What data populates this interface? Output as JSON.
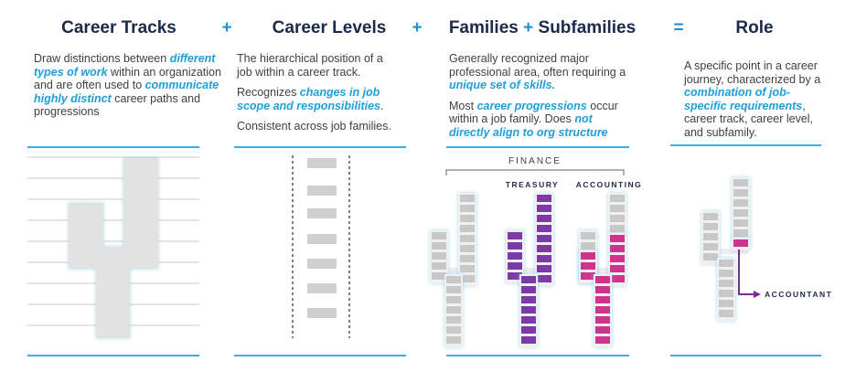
{
  "operators": {
    "plus1": "+",
    "plus2": "+",
    "equals": "="
  },
  "columns": {
    "career_tracks": {
      "title": "Career Tracks",
      "desc_1": "Draw distinctions between ",
      "desc_hl1": "different types of work",
      "desc_2": " within an organization and are often used to ",
      "desc_hl2": "communicate highly distinct",
      "desc_3": " career paths and progressions"
    },
    "career_levels": {
      "title": "Career Levels",
      "p1": "The hierarchical position of a job within a career track.",
      "p2_a": "Recognizes ",
      "p2_hl": "changes in job scope and responsibilities",
      "p2_b": ".",
      "p3": "Consistent across job families."
    },
    "families": {
      "title_a": "Families",
      "title_plus": "+",
      "title_b": "Subfamilies",
      "p1_a": "Generally recognized major professional area, often requiring a ",
      "p1_hl": "unique set of skills.",
      "p2_a": "Most ",
      "p2_hl1": "career progressions",
      "p2_b": " occur within a job family. Does ",
      "p2_hl2": "not directly align to org structure",
      "finance_label": "FINANCE",
      "treasury_label": "TREASURY",
      "accounting_label": "ACCOUNTING"
    },
    "role": {
      "title": "Role",
      "desc_a": "A specific point in a career journey, characterized by a ",
      "desc_hl": "combination of job-specific requirements",
      "desc_b": ", career track, career level, and subfamily.",
      "accountant_label": "ACCOUNTANT"
    }
  },
  "colors": {
    "navy": "#1b2a4a",
    "accent_blue": "#1f9ed8",
    "gray_block": "#c8c8c8",
    "purple": "#7b3aa5",
    "magenta": "#d0338c"
  }
}
